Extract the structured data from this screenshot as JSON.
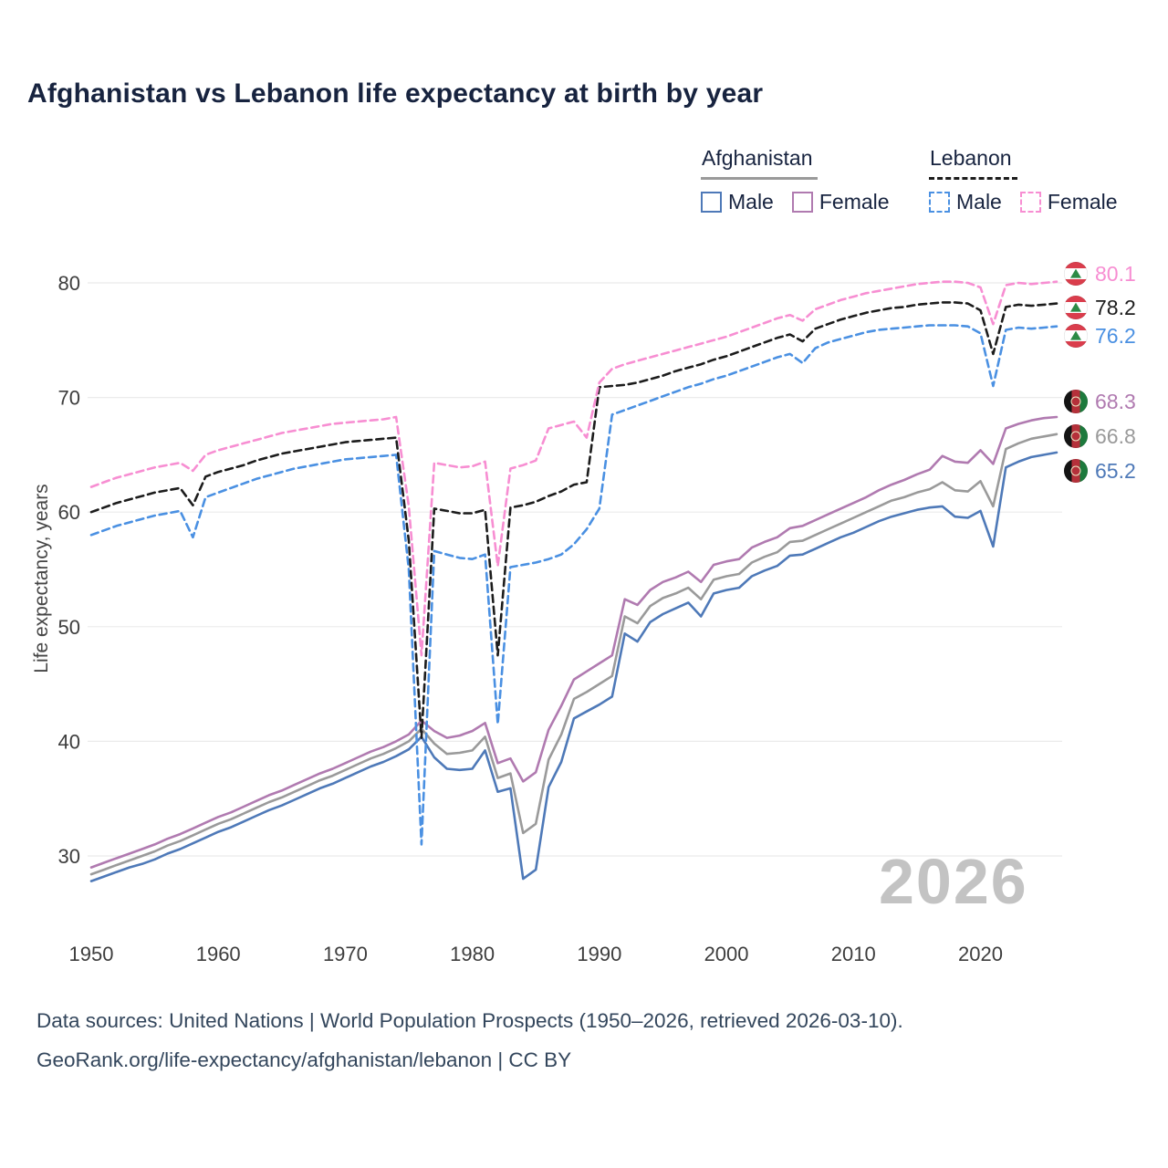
{
  "title": "Afghanistan vs Lebanon life expectancy at birth by year",
  "legend": {
    "afghanistan_label": "Afghanistan",
    "lebanon_label": "Lebanon",
    "male_label": "Male",
    "female_label": "Female"
  },
  "watermark": "2026",
  "footer": {
    "line1": "Data sources: United Nations | World Population Prospects (1950–2026, retrieved 2026-03-10).",
    "line2": "GeoRank.org/life-expectancy/afghanistan/lebanon | CC BY"
  },
  "chart_data": {
    "type": "line",
    "title": "Afghanistan vs Lebanon life expectancy at birth by year",
    "xlabel": "",
    "ylabel": "Life expectancy, years",
    "x_range": [
      1950,
      2026
    ],
    "y_range": [
      26,
      83
    ],
    "x_ticks": [
      1950,
      1960,
      1970,
      1980,
      1990,
      2000,
      2010,
      2020
    ],
    "y_ticks": [
      30,
      40,
      50,
      60,
      70,
      80
    ],
    "grid": "horizontal",
    "legend_position": "top-right",
    "years": [
      1950,
      1951,
      1952,
      1953,
      1954,
      1955,
      1956,
      1957,
      1958,
      1959,
      1960,
      1961,
      1962,
      1963,
      1964,
      1965,
      1966,
      1967,
      1968,
      1969,
      1970,
      1971,
      1972,
      1973,
      1974,
      1975,
      1976,
      1977,
      1978,
      1979,
      1980,
      1981,
      1982,
      1983,
      1984,
      1985,
      1986,
      1987,
      1988,
      1989,
      1990,
      1991,
      1992,
      1993,
      1994,
      1995,
      1996,
      1997,
      1998,
      1999,
      2000,
      2001,
      2002,
      2003,
      2004,
      2005,
      2006,
      2007,
      2008,
      2009,
      2010,
      2011,
      2012,
      2013,
      2014,
      2015,
      2016,
      2017,
      2018,
      2019,
      2020,
      2021,
      2022,
      2023,
      2024,
      2025,
      2026
    ],
    "series": [
      {
        "id": "afghanistan-male",
        "name": "Afghanistan Male",
        "color": "#4e79b8",
        "dash": "solid",
        "end_label": "65.2",
        "values": [
          27.8,
          28.2,
          28.6,
          29.0,
          29.3,
          29.7,
          30.2,
          30.6,
          31.1,
          31.6,
          32.1,
          32.5,
          33.0,
          33.5,
          34.0,
          34.4,
          34.9,
          35.4,
          35.9,
          36.3,
          36.8,
          37.3,
          37.8,
          38.2,
          38.7,
          39.3,
          40.4,
          38.6,
          37.6,
          37.5,
          37.6,
          39.2,
          35.6,
          35.9,
          28.0,
          28.8,
          36.0,
          38.2,
          42.0,
          42.6,
          43.2,
          43.9,
          49.4,
          48.7,
          50.4,
          51.1,
          51.6,
          52.1,
          50.9,
          52.9,
          53.2,
          53.4,
          54.4,
          54.9,
          55.3,
          56.2,
          56.3,
          56.8,
          57.3,
          57.8,
          58.2,
          58.7,
          59.2,
          59.6,
          59.9,
          60.2,
          60.4,
          60.5,
          59.6,
          59.5,
          60.1,
          57.0,
          63.9,
          64.4,
          64.8,
          65.0,
          65.2
        ]
      },
      {
        "id": "afghanistan-total",
        "name": "Afghanistan Both Sexes",
        "color": "#9a9a9a",
        "dash": "solid",
        "end_label": "66.8",
        "values": [
          28.4,
          28.8,
          29.2,
          29.6,
          30.0,
          30.4,
          30.9,
          31.3,
          31.8,
          32.3,
          32.8,
          33.2,
          33.7,
          34.2,
          34.7,
          35.1,
          35.6,
          36.1,
          36.6,
          37.0,
          37.5,
          38.0,
          38.5,
          38.9,
          39.4,
          40.0,
          41.1,
          39.8,
          38.9,
          39.0,
          39.2,
          40.4,
          36.8,
          37.2,
          32.0,
          32.8,
          38.4,
          40.6,
          43.7,
          44.3,
          45.0,
          45.7,
          50.9,
          50.3,
          51.8,
          52.5,
          52.9,
          53.4,
          52.4,
          54.1,
          54.4,
          54.6,
          55.6,
          56.1,
          56.5,
          57.4,
          57.5,
          58.0,
          58.5,
          59.0,
          59.5,
          60.0,
          60.5,
          61.0,
          61.3,
          61.7,
          62.0,
          62.6,
          61.9,
          61.8,
          62.7,
          60.5,
          65.5,
          66.0,
          66.4,
          66.6,
          66.8
        ]
      },
      {
        "id": "afghanistan-female",
        "name": "Afghanistan Female",
        "color": "#b07ab0",
        "dash": "solid",
        "end_label": "68.3",
        "values": [
          29.0,
          29.4,
          29.8,
          30.2,
          30.6,
          31.0,
          31.5,
          31.9,
          32.4,
          32.9,
          33.4,
          33.8,
          34.3,
          34.8,
          35.3,
          35.7,
          36.2,
          36.7,
          37.2,
          37.6,
          38.1,
          38.6,
          39.1,
          39.5,
          40.0,
          40.6,
          41.8,
          40.9,
          40.3,
          40.5,
          40.9,
          41.6,
          38.1,
          38.5,
          36.5,
          37.3,
          41.0,
          43.1,
          45.4,
          46.1,
          46.8,
          47.5,
          52.4,
          51.9,
          53.2,
          53.9,
          54.3,
          54.8,
          53.9,
          55.4,
          55.7,
          55.9,
          56.9,
          57.4,
          57.8,
          58.6,
          58.8,
          59.3,
          59.8,
          60.3,
          60.8,
          61.3,
          61.9,
          62.4,
          62.8,
          63.3,
          63.7,
          64.9,
          64.4,
          64.3,
          65.4,
          64.2,
          67.3,
          67.7,
          68.0,
          68.2,
          68.3
        ]
      },
      {
        "id": "lebanon-male",
        "name": "Lebanon Male",
        "color": "#4a90e2",
        "dash": "dashed",
        "end_label": "76.2",
        "values": [
          58.0,
          58.4,
          58.8,
          59.1,
          59.4,
          59.7,
          59.9,
          60.1,
          57.8,
          61.3,
          61.7,
          62.1,
          62.5,
          62.9,
          63.2,
          63.5,
          63.8,
          64.0,
          64.2,
          64.4,
          64.6,
          64.7,
          64.8,
          64.9,
          65.0,
          55.0,
          31.0,
          56.6,
          56.3,
          56.0,
          55.9,
          56.3,
          41.5,
          55.2,
          55.4,
          55.6,
          55.9,
          56.3,
          57.2,
          58.5,
          60.3,
          68.5,
          68.9,
          69.3,
          69.7,
          70.1,
          70.5,
          70.9,
          71.2,
          71.6,
          71.9,
          72.3,
          72.7,
          73.1,
          73.5,
          73.8,
          73.0,
          74.3,
          74.8,
          75.1,
          75.4,
          75.7,
          75.9,
          76.0,
          76.1,
          76.2,
          76.3,
          76.3,
          76.3,
          76.2,
          75.6,
          71.0,
          75.9,
          76.1,
          76.0,
          76.1,
          76.2
        ]
      },
      {
        "id": "lebanon-total",
        "name": "Lebanon Both Sexes",
        "color": "#1c1c1c",
        "dash": "dashed",
        "end_label": "78.2",
        "values": [
          60.0,
          60.4,
          60.8,
          61.1,
          61.4,
          61.7,
          61.9,
          62.1,
          60.6,
          63.1,
          63.5,
          63.8,
          64.1,
          64.5,
          64.8,
          65.1,
          65.3,
          65.5,
          65.7,
          65.9,
          66.1,
          66.2,
          66.3,
          66.4,
          66.5,
          57.5,
          40.3,
          60.3,
          60.1,
          59.9,
          59.9,
          60.2,
          47.5,
          60.4,
          60.6,
          60.9,
          61.4,
          61.8,
          62.4,
          62.6,
          70.9,
          71.0,
          71.1,
          71.3,
          71.6,
          71.9,
          72.3,
          72.6,
          72.9,
          73.3,
          73.6,
          74.0,
          74.4,
          74.8,
          75.2,
          75.5,
          74.9,
          76.0,
          76.4,
          76.8,
          77.1,
          77.4,
          77.6,
          77.8,
          77.9,
          78.1,
          78.2,
          78.3,
          78.3,
          78.2,
          77.6,
          73.8,
          77.9,
          78.1,
          78.0,
          78.1,
          78.2
        ]
      },
      {
        "id": "lebanon-female",
        "name": "Lebanon Female",
        "color": "#f78ed2",
        "dash": "dashed",
        "end_label": "80.1",
        "values": [
          62.2,
          62.6,
          63.0,
          63.3,
          63.6,
          63.9,
          64.1,
          64.3,
          63.6,
          65.0,
          65.4,
          65.7,
          66.0,
          66.3,
          66.6,
          66.9,
          67.1,
          67.3,
          67.5,
          67.7,
          67.8,
          67.9,
          68.0,
          68.1,
          68.3,
          60.5,
          47.5,
          64.3,
          64.1,
          63.9,
          64.0,
          64.4,
          55.3,
          63.8,
          64.1,
          64.5,
          67.3,
          67.6,
          67.9,
          66.5,
          71.3,
          72.5,
          72.9,
          73.2,
          73.5,
          73.8,
          74.1,
          74.4,
          74.7,
          75.0,
          75.3,
          75.7,
          76.1,
          76.5,
          76.9,
          77.2,
          76.7,
          77.7,
          78.1,
          78.5,
          78.8,
          79.1,
          79.3,
          79.5,
          79.7,
          79.9,
          80.0,
          80.1,
          80.1,
          80.0,
          79.6,
          76.4,
          79.8,
          80.0,
          79.9,
          80.0,
          80.1
        ]
      }
    ]
  }
}
